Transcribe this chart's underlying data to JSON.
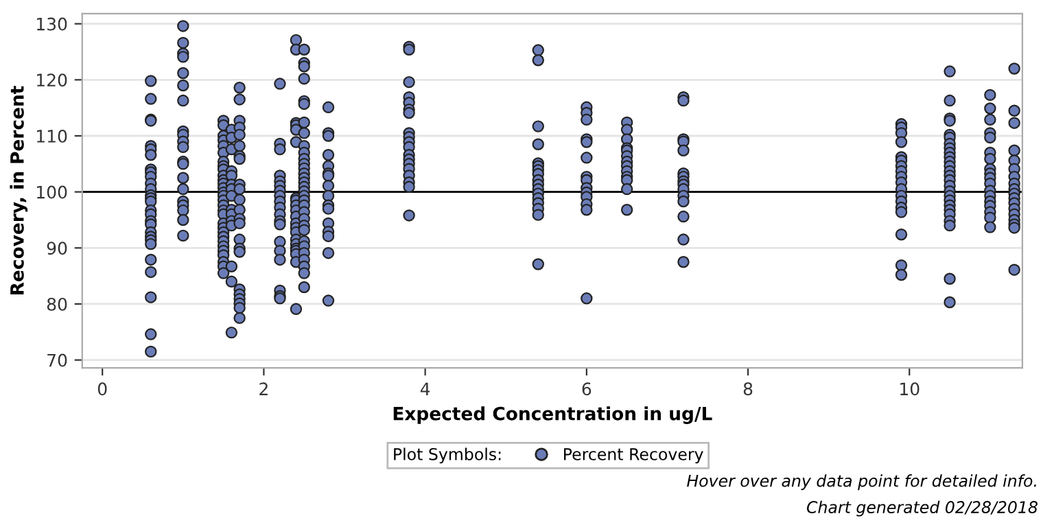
{
  "chart_data": {
    "type": "scatter",
    "xlabel": "Expected Concentration in ug/L",
    "ylabel": "Recovery, in Percent",
    "legend_title": "Plot Symbols:",
    "legend": "bottom",
    "grid": "y",
    "marker": "circle",
    "xlim": [
      -0.25,
      11.4
    ],
    "xticks": [
      0,
      2,
      4,
      6,
      8,
      10
    ],
    "ylim": [
      68.6,
      131.8
    ],
    "yticks": [
      70,
      80,
      90,
      100,
      110,
      120,
      130
    ],
    "ref_lines": [
      {
        "axis": "y",
        "value": 100,
        "color": "#000000"
      }
    ],
    "annotations": [
      "Hover over any data point for detailed info.",
      "Chart generated 02/28/2018"
    ],
    "series": [
      {
        "name": "Percent Recovery",
        "color": "#6b7db8",
        "x": [
          0.6,
          0.6,
          0.6,
          0.6,
          0.6,
          0.6,
          0.6,
          0.6,
          0.6,
          0.6,
          0.6,
          0.6,
          0.6,
          0.6,
          0.6,
          0.6,
          0.6,
          0.6,
          0.6,
          0.6,
          0.6,
          0.6,
          0.6,
          0.6,
          0.6,
          0.6,
          0.6,
          0.6,
          1.0,
          1.0,
          1.0,
          1.0,
          1.0,
          1.0,
          1.0,
          1.0,
          1.0,
          1.0,
          1.0,
          1.0,
          1.0,
          1.0,
          1.0,
          1.0,
          1.0,
          1.0,
          1.0,
          1.0,
          1.5,
          1.5,
          1.5,
          1.5,
          1.5,
          1.5,
          1.5,
          1.5,
          1.5,
          1.5,
          1.5,
          1.5,
          1.5,
          1.5,
          1.5,
          1.5,
          1.5,
          1.5,
          1.5,
          1.5,
          1.5,
          1.5,
          1.5,
          1.5,
          1.5,
          1.5,
          1.5,
          1.5,
          1.5,
          1.5,
          1.6,
          1.6,
          1.6,
          1.6,
          1.6,
          1.6,
          1.6,
          1.6,
          1.6,
          1.6,
          1.6,
          1.6,
          1.6,
          1.6,
          1.6,
          1.7,
          1.7,
          1.7,
          1.7,
          1.7,
          1.7,
          1.7,
          1.7,
          1.7,
          1.7,
          1.7,
          1.7,
          1.7,
          1.7,
          1.7,
          1.7,
          1.7,
          1.7,
          1.7,
          1.7,
          1.7,
          1.7,
          1.7,
          2.2,
          2.2,
          2.2,
          2.2,
          2.2,
          2.2,
          2.2,
          2.2,
          2.2,
          2.2,
          2.2,
          2.2,
          2.2,
          2.2,
          2.2,
          2.2,
          2.2,
          2.2,
          2.2,
          2.4,
          2.4,
          2.4,
          2.4,
          2.4,
          2.4,
          2.4,
          2.4,
          2.4,
          2.4,
          2.4,
          2.4,
          2.4,
          2.4,
          2.4,
          2.4,
          2.4,
          2.4,
          2.4,
          2.4,
          2.4,
          2.5,
          2.5,
          2.5,
          2.5,
          2.5,
          2.5,
          2.5,
          2.5,
          2.5,
          2.5,
          2.5,
          2.5,
          2.5,
          2.5,
          2.5,
          2.5,
          2.5,
          2.5,
          2.5,
          2.5,
          2.5,
          2.5,
          2.5,
          2.5,
          2.5,
          2.5,
          2.5,
          2.5,
          2.5,
          2.5,
          2.5,
          2.5,
          2.8,
          2.8,
          2.8,
          2.8,
          2.8,
          2.8,
          2.8,
          2.8,
          2.8,
          2.8,
          2.8,
          2.8,
          2.8,
          2.8,
          2.8,
          2.8,
          3.8,
          3.8,
          3.8,
          3.8,
          3.8,
          3.8,
          3.8,
          3.8,
          3.8,
          3.8,
          3.8,
          3.8,
          3.8,
          3.8,
          3.8,
          3.8,
          3.8,
          3.8,
          3.8,
          5.4,
          5.4,
          5.4,
          5.4,
          5.4,
          5.4,
          5.4,
          5.4,
          5.4,
          5.4,
          5.4,
          5.4,
          5.4,
          5.4,
          5.4,
          5.4,
          5.4,
          6.0,
          6.0,
          6.0,
          6.0,
          6.0,
          6.0,
          6.0,
          6.0,
          6.0,
          6.0,
          6.0,
          6.0,
          6.0,
          6.0,
          6.5,
          6.5,
          6.5,
          6.5,
          6.5,
          6.5,
          6.5,
          6.5,
          6.5,
          6.5,
          6.5,
          6.5,
          6.5,
          7.2,
          7.2,
          7.2,
          7.2,
          7.2,
          7.2,
          7.2,
          7.2,
          7.2,
          7.2,
          7.2,
          7.2,
          7.2,
          7.2,
          7.2,
          9.9,
          9.9,
          9.9,
          9.9,
          9.9,
          9.9,
          9.9,
          9.9,
          9.9,
          9.9,
          9.9,
          9.9,
          9.9,
          9.9,
          9.9,
          9.9,
          9.9,
          9.9,
          10.5,
          10.5,
          10.5,
          10.5,
          10.5,
          10.5,
          10.5,
          10.5,
          10.5,
          10.5,
          10.5,
          10.5,
          10.5,
          10.5,
          10.5,
          10.5,
          10.5,
          10.5,
          10.5,
          10.5,
          10.5,
          10.5,
          10.5,
          10.5,
          10.5,
          10.5,
          11.0,
          11.0,
          11.0,
          11.0,
          11.0,
          11.0,
          11.0,
          11.0,
          11.0,
          11.0,
          11.0,
          11.0,
          11.0,
          11.0,
          11.0,
          11.0,
          11.0,
          11.0,
          11.3,
          11.3,
          11.3,
          11.3,
          11.3,
          11.3,
          11.3,
          11.3,
          11.3,
          11.3,
          11.3,
          11.3,
          11.3,
          11.3,
          11.3,
          11.3,
          11.3,
          11.3
        ],
        "values": [
          119.8,
          116.6,
          112.9,
          112.7,
          108.2,
          107.6,
          106.6,
          104.0,
          103.5,
          102.7,
          101.5,
          100.5,
          99.4,
          98.9,
          98.3,
          96.7,
          96.0,
          94.8,
          94.2,
          92.8,
          92.0,
          91.4,
          90.7,
          87.9,
          85.7,
          81.2,
          74.6,
          71.5,
          129.6,
          126.6,
          124.7,
          124.1,
          121.2,
          119.0,
          116.3,
          110.8,
          110.2,
          109.0,
          108.0,
          105.4,
          105.0,
          102.5,
          100.5,
          98.3,
          97.6,
          96.7,
          95.0,
          92.2,
          112.7,
          111.9,
          110.0,
          109.2,
          108.2,
          107.0,
          105.4,
          104.6,
          104.0,
          102.9,
          102.1,
          101.5,
          100.7,
          99.9,
          99.3,
          98.5,
          97.6,
          96.7,
          96.0,
          94.4,
          93.6,
          92.8,
          92.0,
          91.2,
          90.3,
          89.5,
          88.7,
          87.5,
          86.7,
          85.5,
          111.1,
          109.7,
          107.6,
          103.7,
          102.9,
          101.3,
          100.5,
          99.3,
          96.8,
          96.0,
          94.8,
          94.0,
          86.7,
          84.0,
          74.9,
          118.6,
          116.5,
          112.7,
          111.5,
          110.2,
          108.2,
          106.4,
          105.9,
          101.3,
          100.5,
          98.6,
          96.8,
          95.2,
          94.4,
          91.5,
          89.9,
          89.3,
          82.6,
          81.7,
          80.9,
          80.1,
          79.3,
          77.5,
          119.3,
          108.6,
          107.6,
          102.9,
          101.9,
          101.1,
          100.2,
          99.3,
          98.3,
          97.2,
          96.0,
          94.8,
          94.2,
          91.1,
          89.5,
          87.9,
          82.4,
          81.4,
          81.0,
          127.1,
          125.4,
          112.3,
          111.9,
          111.1,
          108.9,
          98.9,
          98.5,
          97.6,
          96.7,
          95.6,
          94.4,
          93.6,
          92.8,
          91.5,
          90.7,
          89.9,
          89.5,
          88.9,
          87.5,
          79.1,
          125.4,
          123.0,
          122.4,
          120.2,
          116.2,
          115.7,
          112.4,
          110.5,
          108.2,
          107.0,
          105.9,
          105.0,
          104.2,
          103.3,
          102.5,
          101.7,
          100.9,
          100.1,
          99.3,
          98.5,
          97.6,
          96.4,
          95.2,
          94.0,
          93.2,
          91.2,
          90.3,
          89.1,
          87.9,
          86.7,
          85.5,
          83.0,
          115.1,
          110.5,
          110.0,
          106.6,
          104.6,
          103.3,
          102.9,
          101.1,
          99.3,
          97.6,
          97.0,
          94.4,
          92.9,
          92.1,
          89.1,
          80.6,
          125.9,
          125.4,
          119.6,
          116.9,
          115.9,
          114.7,
          114.1,
          110.5,
          109.8,
          108.9,
          108.0,
          106.6,
          105.8,
          105.0,
          104.1,
          102.9,
          101.7,
          100.9,
          95.8,
          125.3,
          123.5,
          111.7,
          108.5,
          105.1,
          104.6,
          103.9,
          103.2,
          102.1,
          101.3,
          100.5,
          99.7,
          98.9,
          98.0,
          97.0,
          95.9,
          87.1,
          115.1,
          114.1,
          112.9,
          109.4,
          108.9,
          106.1,
          102.7,
          102.1,
          100.7,
          99.9,
          99.1,
          97.8,
          96.8,
          81.0,
          112.4,
          111.1,
          109.4,
          107.8,
          107.4,
          106.4,
          105.4,
          104.6,
          103.7,
          102.7,
          102.1,
          100.5,
          96.8,
          116.9,
          116.3,
          109.4,
          109.0,
          107.4,
          103.3,
          102.7,
          101.9,
          101.3,
          100.5,
          99.3,
          98.3,
          95.6,
          91.5,
          87.5,
          112.1,
          111.5,
          110.5,
          108.9,
          106.2,
          105.6,
          104.6,
          103.7,
          102.7,
          101.7,
          100.5,
          99.3,
          98.3,
          97.2,
          96.4,
          92.4,
          86.9,
          85.2,
          121.5,
          116.3,
          113.1,
          112.7,
          110.2,
          109.7,
          108.6,
          107.8,
          107.0,
          106.2,
          105.4,
          104.6,
          103.7,
          102.9,
          102.1,
          101.1,
          100.1,
          99.3,
          98.5,
          97.6,
          96.8,
          96.0,
          94.8,
          94.0,
          84.5,
          80.3,
          117.3,
          114.9,
          112.9,
          110.5,
          109.7,
          107.0,
          105.9,
          104.1,
          103.3,
          102.5,
          101.5,
          100.2,
          99.3,
          98.3,
          97.5,
          96.4,
          95.4,
          93.7,
          122.0,
          114.5,
          112.3,
          107.4,
          105.6,
          104.1,
          102.7,
          101.5,
          100.5,
          99.7,
          98.9,
          98.0,
          97.0,
          96.0,
          95.0,
          94.2,
          93.6,
          86.1
        ]
      }
    ]
  }
}
